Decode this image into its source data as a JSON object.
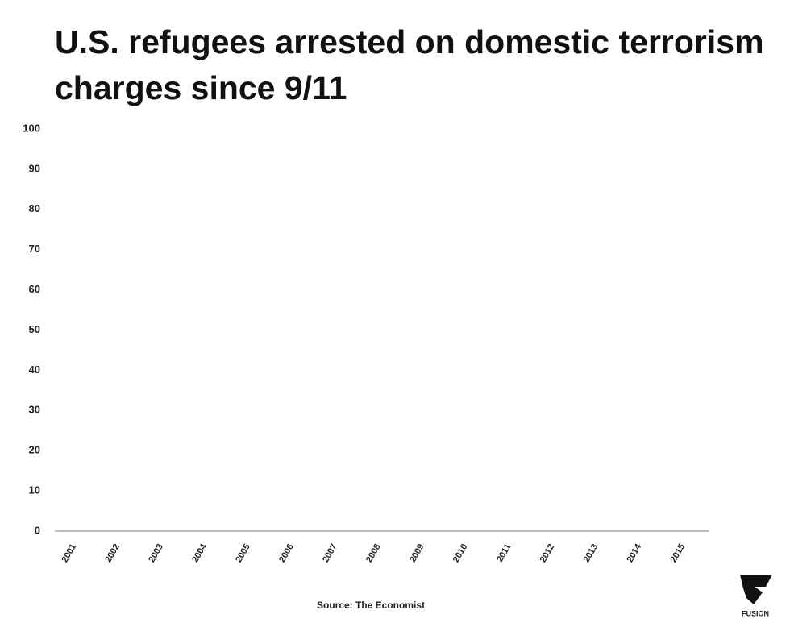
{
  "chart_data": {
    "type": "bar",
    "title": "U.S. refugees arrested on domestic terrorism charges since 9/11",
    "categories": [
      "2001",
      "2002",
      "2003",
      "2004",
      "2005",
      "2006",
      "2007",
      "2008",
      "2009",
      "2010",
      "2011",
      "2012",
      "2013",
      "2014",
      "2015"
    ],
    "values": [
      0,
      0,
      0,
      0,
      0,
      0,
      0,
      0,
      0,
      0,
      0,
      0,
      0,
      0,
      0
    ],
    "color": "#4472c4",
    "ylim": [
      0,
      100
    ],
    "yticks": [
      0,
      10,
      20,
      30,
      40,
      50,
      60,
      70,
      80,
      90,
      100
    ],
    "grid": false,
    "source": "Source: The Economist"
  },
  "brand": "FUSION"
}
